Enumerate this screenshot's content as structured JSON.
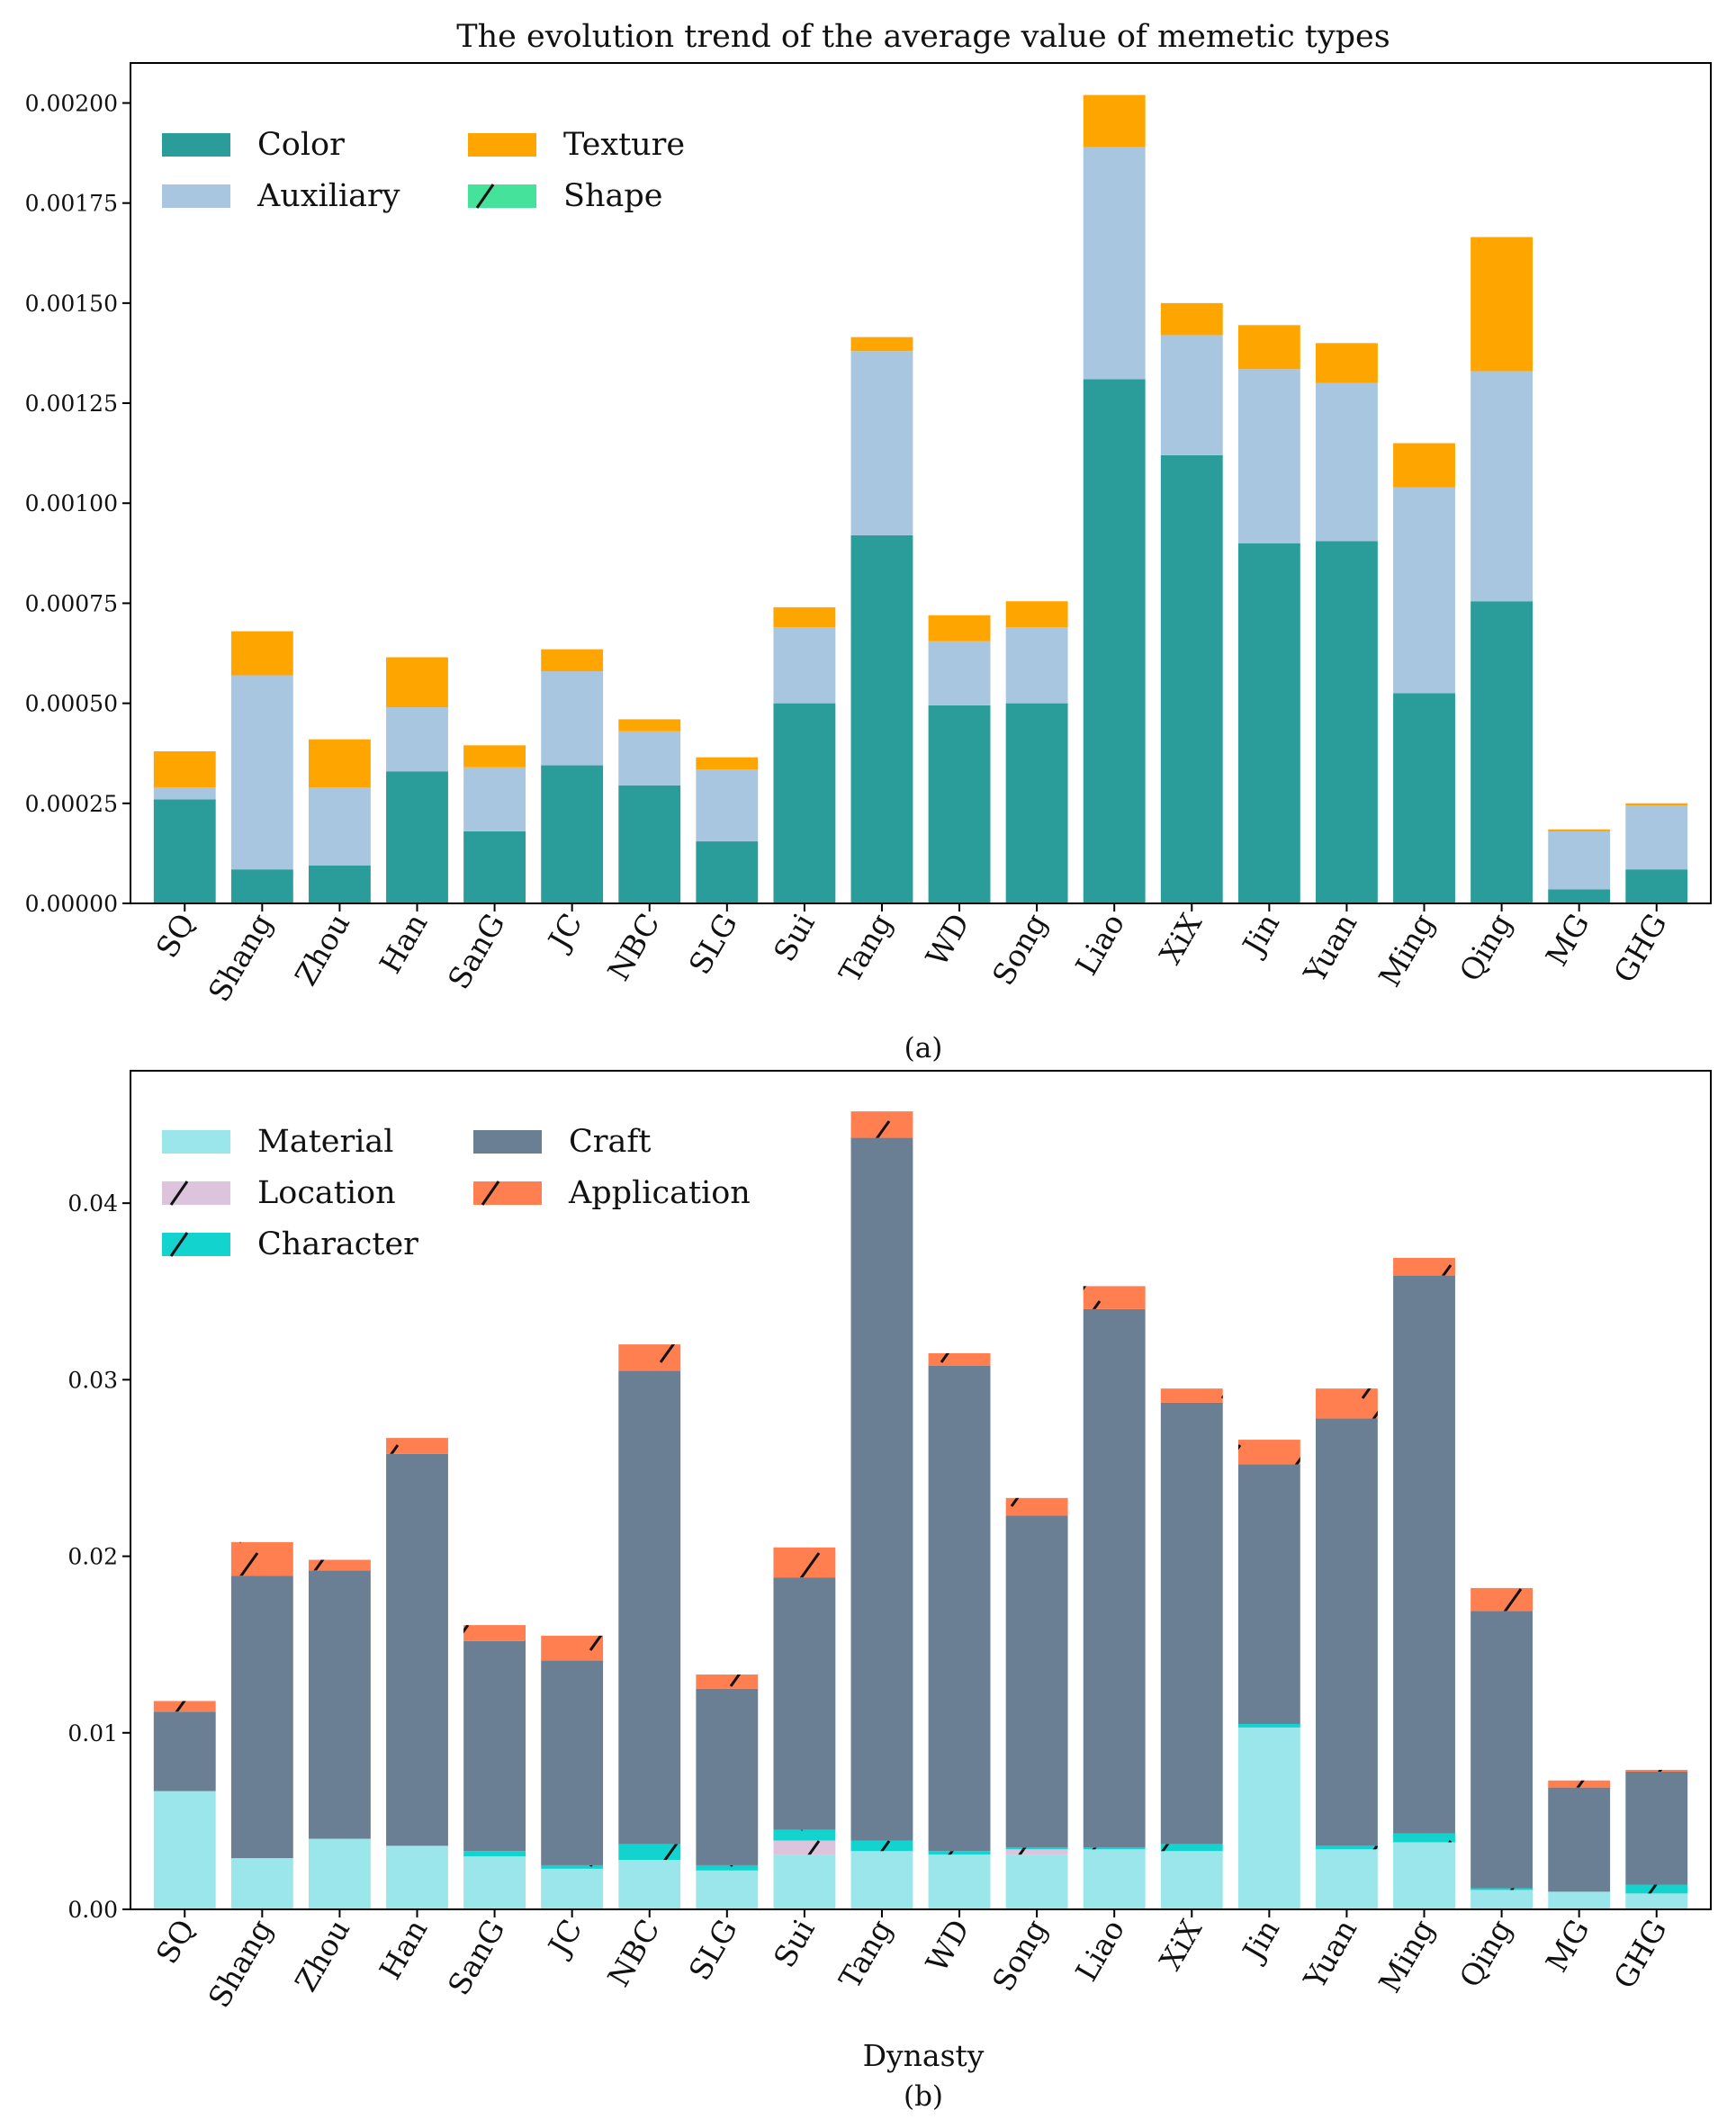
{
  "chart_data": [
    {
      "type": "bar",
      "stacked": true,
      "title": "The evolution trend of the average value of memetic types",
      "caption": "(a)",
      "xlabel": "",
      "ylabel": "",
      "ylim": [
        0,
        0.0021
      ],
      "yticks": [
        "0.00000",
        "0.00025",
        "0.00050",
        "0.00075",
        "0.00100",
        "0.00125",
        "0.00150",
        "0.00175",
        "0.00200"
      ],
      "legend_position": "top-left",
      "grid": false,
      "categories": [
        "SQ",
        "Shang",
        "Zhou",
        "Han",
        "SanG",
        "JC",
        "NBC",
        "SLG",
        "Sui",
        "Tang",
        "WD",
        "Song",
        "Liao",
        "XiX",
        "Jin",
        "Yuan",
        "Ming",
        "Qing",
        "MG",
        "GHG"
      ],
      "series": [
        {
          "name": "Color",
          "color": "#2a9d9b",
          "values": [
            0.00026,
            8.5e-05,
            9.5e-05,
            0.00033,
            0.00018,
            0.000345,
            0.000295,
            0.000155,
            0.0005,
            0.00092,
            0.000495,
            0.0005,
            0.00131,
            0.00112,
            0.0009,
            0.000905,
            0.000525,
            0.000755,
            3.5e-05,
            8.5e-05
          ]
        },
        {
          "name": "Auxiliary",
          "color": "#a9c6e0",
          "values": [
            3e-05,
            0.000485,
            0.000195,
            0.00016,
            0.00016,
            0.000235,
            0.000135,
            0.00018,
            0.00019,
            0.00046,
            0.00016,
            0.00019,
            0.00058,
            0.0003,
            0.000435,
            0.000395,
            0.000515,
            0.000575,
            0.000145,
            0.00016
          ]
        },
        {
          "name": "Texture",
          "color": "#ffa500",
          "values": [
            9e-05,
            0.00011,
            0.00012,
            0.000125,
            5.5e-05,
            5.5e-05,
            3e-05,
            3e-05,
            5e-05,
            3.5e-05,
            6.5e-05,
            6.5e-05,
            0.00013,
            8e-05,
            0.00011,
            0.0001,
            0.00011,
            0.000335,
            5e-06,
            5e-06
          ]
        },
        {
          "name": "Shape",
          "color": "#44e29b",
          "hatch": true,
          "values": [
            0,
            0,
            0,
            0,
            0,
            0,
            0,
            0,
            0,
            0,
            0,
            0,
            0,
            0,
            0,
            0,
            0,
            0,
            0,
            0
          ]
        }
      ]
    },
    {
      "type": "bar",
      "stacked": true,
      "title": "",
      "caption": "(b)",
      "xlabel": "Dynasty",
      "ylabel": "",
      "ylim": [
        0,
        0.0475
      ],
      "yticks": [
        "0.00",
        "0.01",
        "0.02",
        "0.03",
        "0.04"
      ],
      "legend_position": "top-left",
      "grid": false,
      "categories": [
        "SQ",
        "Shang",
        "Zhou",
        "Han",
        "SanG",
        "JC",
        "NBC",
        "SLG",
        "Sui",
        "Tang",
        "WD",
        "Song",
        "Liao",
        "XiX",
        "Jin",
        "Yuan",
        "Ming",
        "Qing",
        "MG",
        "GHG"
      ],
      "series": [
        {
          "name": "Material",
          "color": "#9ae6ea",
          "values": [
            0.0067,
            0.0029,
            0.004,
            0.0036,
            0.003,
            0.0023,
            0.0028,
            0.0022,
            0.0031,
            0.0033,
            0.0031,
            0.0031,
            0.0034,
            0.0033,
            0.0103,
            0.0034,
            0.0038,
            0.0011,
            0.001,
            0.0009
          ]
        },
        {
          "name": "Location",
          "color": "#dcc4dc",
          "hatch": true,
          "values": [
            0,
            0,
            0,
            0,
            0,
            0,
            0,
            0,
            0.0008,
            0,
            0,
            0.0003,
            0,
            0,
            0,
            0,
            0,
            0,
            0,
            0
          ]
        },
        {
          "name": "Character",
          "color": "#12d3cd",
          "hatch": true,
          "values": [
            0,
            0,
            0,
            0,
            0.0003,
            0.0002,
            0.0009,
            0.0003,
            0.0006,
            0.0006,
            0.0002,
            0.0001,
            0.0001,
            0.0004,
            0.0002,
            0.0002,
            0.0005,
            0.0001,
            0,
            0.0005
          ]
        },
        {
          "name": "Craft",
          "color": "#6a7f93",
          "values": [
            0.0045,
            0.016,
            0.0152,
            0.0222,
            0.0119,
            0.0116,
            0.0268,
            0.01,
            0.0143,
            0.0398,
            0.0275,
            0.0188,
            0.0305,
            0.025,
            0.0147,
            0.0242,
            0.0316,
            0.0157,
            0.0059,
            0.0064
          ]
        },
        {
          "name": "Application",
          "color": "#ff7f50",
          "hatch": true,
          "values": [
            0.0006,
            0.0019,
            0.0006,
            0.0009,
            0.0009,
            0.0014,
            0.0015,
            0.0008,
            0.0017,
            0.0015,
            0.0007,
            0.001,
            0.0013,
            0.0008,
            0.0014,
            0.0017,
            0.001,
            0.0013,
            0.0004,
            0.0001
          ]
        }
      ]
    }
  ]
}
